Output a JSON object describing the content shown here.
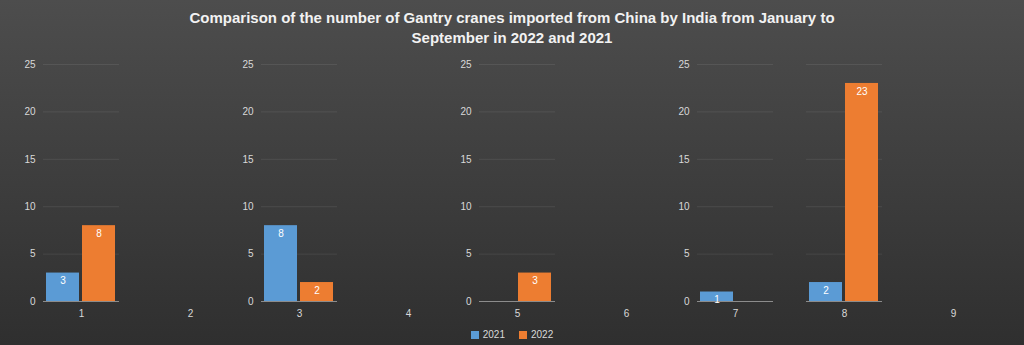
{
  "chart_data": {
    "type": "bar",
    "title": "Comparison of the number of Gantry cranes imported from China by India from January to September in 2022 and 2021",
    "categories": [
      1,
      2,
      3,
      4,
      5,
      6,
      7,
      8,
      9
    ],
    "series": [
      {
        "name": "2021",
        "color": "#5b9bd5",
        "values": [
          3,
          null,
          8,
          null,
          null,
          null,
          1,
          2,
          null
        ]
      },
      {
        "name": "2022",
        "color": "#ed7d31",
        "values": [
          8,
          null,
          2,
          null,
          3,
          null,
          null,
          23,
          null
        ]
      }
    ],
    "ylim": [
      0,
      25
    ],
    "yticks": [
      0,
      5,
      10,
      15,
      20,
      25
    ],
    "grid": true,
    "data_labels": true,
    "legend": "bottom"
  }
}
